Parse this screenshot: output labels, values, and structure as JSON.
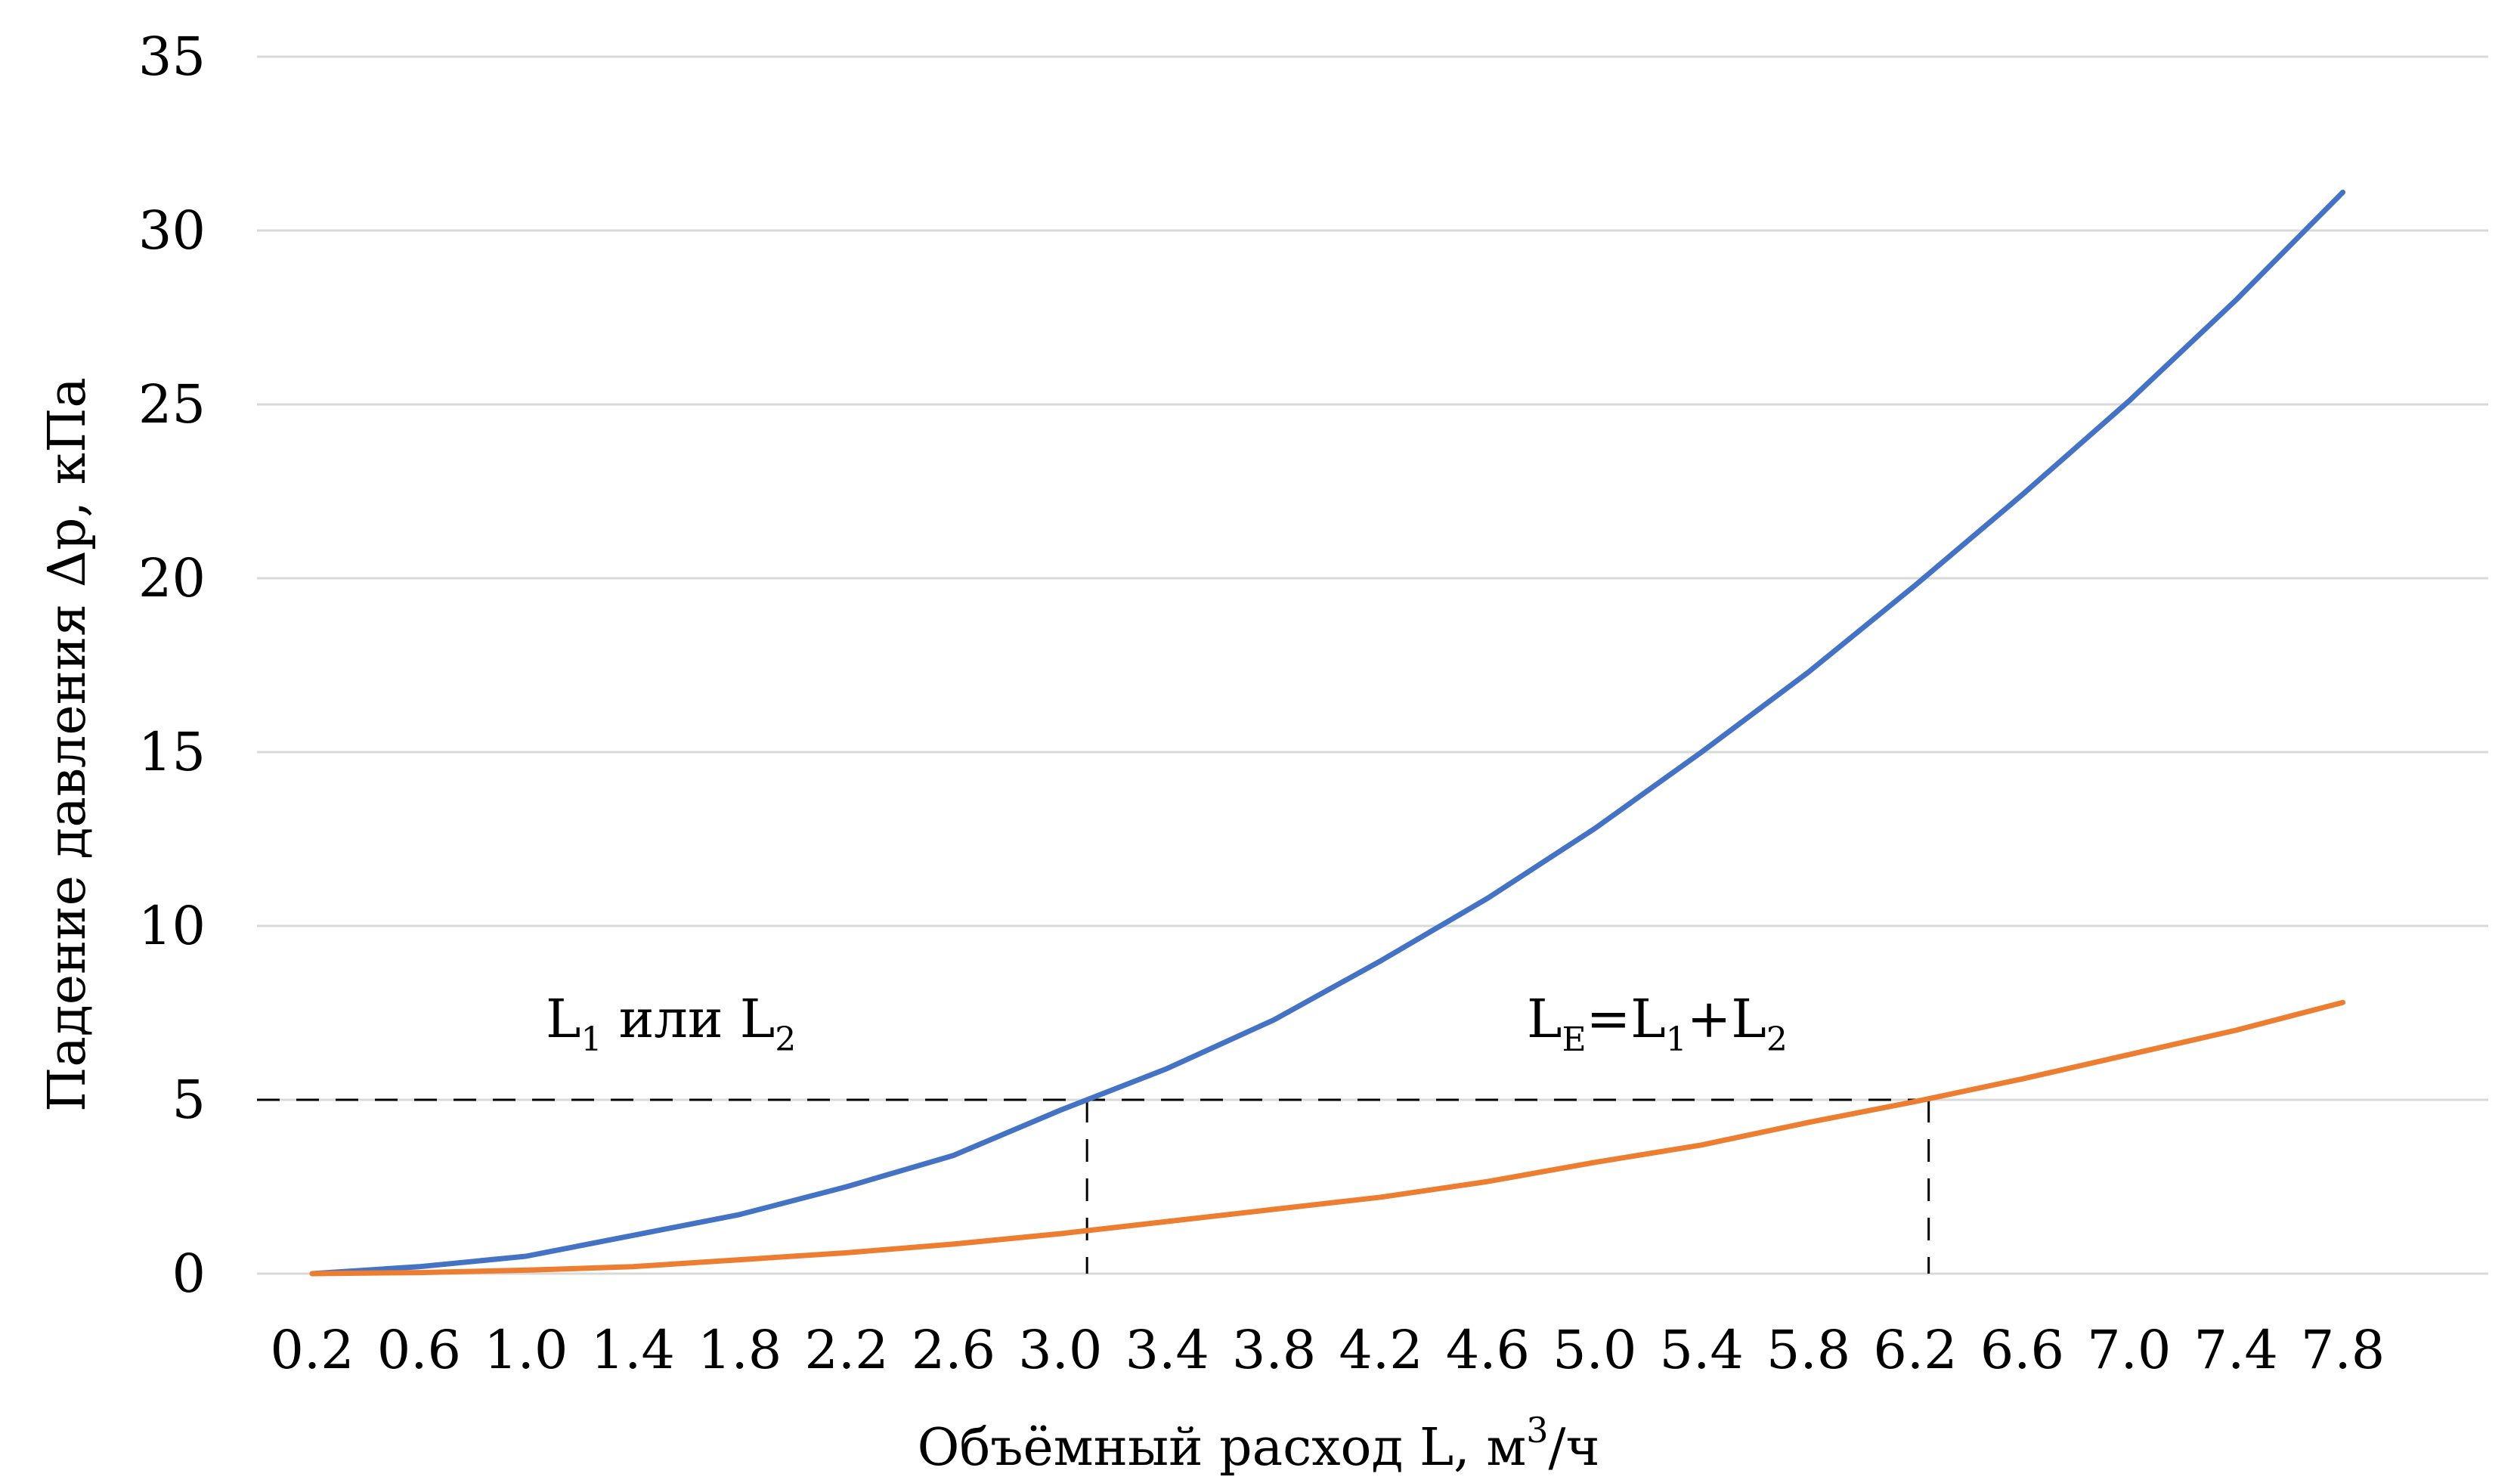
{
  "chart_data": {
    "type": "line",
    "title": "",
    "xlabel": "Объёмный расход L, м",
    "xlabel_sup": "3",
    "xlabel_tail": "/ч",
    "ylabel": "Падение давления Δр, кПа",
    "ylim": [
      0,
      35
    ],
    "yticks": [
      0,
      5,
      10,
      15,
      20,
      25,
      30,
      35
    ],
    "grid": true,
    "categories": [
      "0.2",
      "0.6",
      "1.0",
      "1.4",
      "1.8",
      "2.2",
      "2.6",
      "3.0",
      "3.4",
      "3.8",
      "4.2",
      "4.6",
      "5.0",
      "5.4",
      "5.8",
      "6.2",
      "6.6",
      "7.0",
      "7.4",
      "7.8"
    ],
    "series": [
      {
        "name": "L1 или L2",
        "color": "#4472c4",
        "values": [
          0.0,
          0.2,
          0.5,
          1.1,
          1.7,
          2.5,
          3.4,
          4.7,
          5.9,
          7.3,
          9.0,
          10.8,
          12.8,
          15.0,
          17.3,
          19.8,
          22.4,
          25.1,
          28.0,
          31.1
        ]
      },
      {
        "name": "LE=L1+L2",
        "color": "#ed7d31",
        "values": [
          0.0,
          0.03,
          0.1,
          0.2,
          0.4,
          0.6,
          0.85,
          1.15,
          1.5,
          1.85,
          2.2,
          2.65,
          3.2,
          3.7,
          4.35,
          4.95,
          5.6,
          6.3,
          7.0,
          7.8
        ]
      }
    ],
    "reference": {
      "y": 5,
      "x_at_series_1": 3.1,
      "x_at_series_2": 6.25
    },
    "annotations": [
      {
        "id": "left",
        "parts": [
          {
            "t": "L"
          },
          {
            "t": "1",
            "sub": true
          },
          {
            "t": " или L"
          },
          {
            "t": "2",
            "sub": true
          }
        ]
      },
      {
        "id": "right",
        "parts": [
          {
            "t": "L"
          },
          {
            "t": "E",
            "sub": true
          },
          {
            "t": "=L"
          },
          {
            "t": "1",
            "sub": true
          },
          {
            "t": "+L"
          },
          {
            "t": "2",
            "sub": true
          }
        ]
      }
    ]
  }
}
